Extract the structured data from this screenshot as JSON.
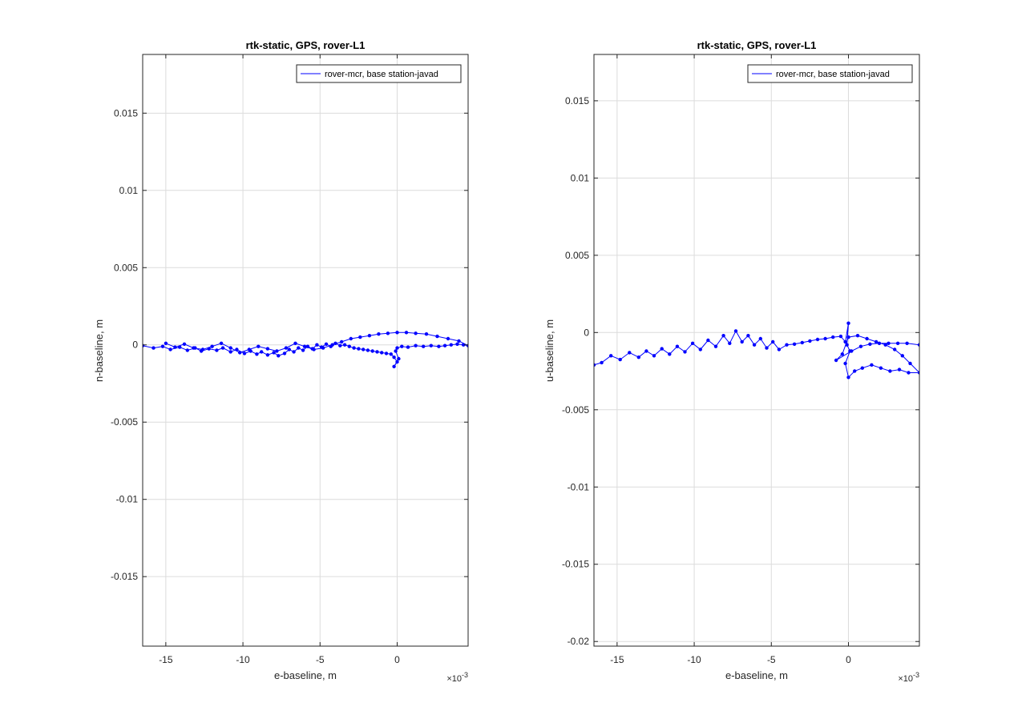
{
  "figure": {
    "background_color": "#ffffff",
    "axes_color": "#262626",
    "grid_color": "#dcdcdc",
    "line_color": "#0000ff"
  },
  "chart_data": [
    {
      "type": "line",
      "title": "rtk-static, GPS, rover-L1",
      "xlabel": "e-baseline, m",
      "ylabel": "n-baseline, m",
      "xlim": [
        -0.0165,
        0.0046
      ],
      "ylim": [
        -0.0195,
        0.0188
      ],
      "x_exponent_label": "×10^-3",
      "x_exponent_base": "×10",
      "x_exponent_power": "-3",
      "xticks": [
        -0.015,
        -0.01,
        -0.005,
        0
      ],
      "xticklabels": [
        "-15",
        "-10",
        "-5",
        "0"
      ],
      "yticks": [
        0.015,
        0.01,
        0.005,
        0,
        -0.005,
        -0.01,
        -0.015
      ],
      "yticklabels": [
        "0.015",
        "0.01",
        "0.005",
        "0",
        "-0.005",
        "-0.01",
        "-0.015"
      ],
      "grid": true,
      "legend": {
        "location": "top-right",
        "entries": [
          "rover-mcr, base station-javad"
        ]
      },
      "series": [
        {
          "name": "rover-mcr, base station-javad",
          "color": "#0000ff",
          "marker": "dot",
          "x": [
            -0.0165,
            -0.0158,
            -0.0152,
            -0.0147,
            -0.0141,
            -0.0136,
            -0.0131,
            -0.0127,
            -0.0122,
            -0.0117,
            -0.0113,
            -0.0108,
            -0.0104,
            -0.0099,
            -0.0095,
            -0.0091,
            -0.0088,
            -0.0084,
            -0.008,
            -0.0077,
            -0.0073,
            -0.007,
            -0.0067,
            -0.0064,
            -0.0061,
            -0.0058,
            -0.0055,
            -0.0052,
            -0.0049,
            -0.0046,
            -0.0043,
            -0.004,
            -0.0037,
            -0.0034,
            -0.0031,
            -0.0028,
            -0.0025,
            -0.0022,
            -0.0019,
            -0.0016,
            -0.0013,
            -0.001,
            -0.0007,
            -0.0004,
            -0.0002,
            0.0,
            -0.0002,
            0.0001,
            -0.0001,
            0.0,
            0.0003,
            0.0007,
            0.0012,
            0.0017,
            0.0022,
            0.0027,
            0.0031,
            0.0035,
            0.0039,
            0.0043,
            0.0046,
            0.004,
            0.0033,
            0.0026,
            0.0019,
            0.0012,
            0.0006,
            0.0,
            -0.0006,
            -0.0012,
            -0.0018,
            -0.0024,
            -0.003,
            -0.0036,
            -0.0042,
            -0.0048,
            -0.0054,
            -0.006,
            -0.0066,
            -0.0072,
            -0.0078,
            -0.0084,
            -0.009,
            -0.0096,
            -0.0102,
            -0.0108,
            -0.0114,
            -0.012,
            -0.0126,
            -0.0132,
            -0.0138,
            -0.0144,
            -0.015
          ],
          "y": [
            -5e-05,
            -0.0002,
            -0.0001,
            -0.0003,
            -0.00015,
            -0.00035,
            -0.0002,
            -0.0004,
            -0.00025,
            -0.00035,
            -0.0002,
            -0.00045,
            -0.0003,
            -0.00055,
            -0.0004,
            -0.0006,
            -0.00045,
            -0.00065,
            -0.0005,
            -0.0007,
            -0.00055,
            -0.0003,
            -0.00045,
            -0.0002,
            -0.00035,
            -0.0001,
            -0.00025,
            0.0,
            -0.00015,
            5e-05,
            -0.0001,
            0.0001,
            -5e-05,
            0.0,
            -0.0001,
            -0.0002,
            -0.00025,
            -0.0003,
            -0.00035,
            -0.0004,
            -0.00045,
            -0.0005,
            -0.00055,
            -0.0006,
            -0.0008,
            -0.0011,
            -0.0014,
            -0.0009,
            -0.0004,
            -0.0002,
            -0.0001,
            -0.00015,
            -5e-05,
            -0.0001,
            -5e-05,
            -0.0001,
            -5e-05,
            0.0,
            5e-05,
            0.0,
            -5e-05,
            0.00025,
            0.0004,
            0.00055,
            0.0007,
            0.00075,
            0.0008,
            0.0008,
            0.00075,
            0.0007,
            0.0006,
            0.0005,
            0.0004,
            0.0002,
            0.0,
            -0.0002,
            -0.0003,
            -0.0001,
            0.0001,
            -0.0002,
            -0.0004,
            -0.00025,
            -0.0001,
            -0.0003,
            -0.0005,
            -0.0002,
            0.0001,
            -0.0001,
            -0.0003,
            -0.0002,
            5e-05,
            -0.00015,
            0.0001
          ]
        }
      ]
    },
    {
      "type": "line",
      "title": "rtk-static, GPS, rover-L1",
      "xlabel": "e-baseline, m",
      "ylabel": "u-baseline, m",
      "xlim": [
        -0.0165,
        0.0046
      ],
      "ylim": [
        -0.0203,
        0.018
      ],
      "x_exponent_label": "×10^-3",
      "x_exponent_base": "×10",
      "x_exponent_power": "-3",
      "xticks": [
        -0.015,
        -0.01,
        -0.005,
        0
      ],
      "xticklabels": [
        "-15",
        "-10",
        "-5",
        "0"
      ],
      "yticks": [
        0.015,
        0.01,
        0.005,
        0,
        -0.005,
        -0.01,
        -0.015,
        -0.02
      ],
      "yticklabels": [
        "0.015",
        "0.01",
        "0.005",
        "0",
        "-0.005",
        "-0.01",
        "-0.015",
        "-0.02"
      ],
      "grid": true,
      "legend": {
        "location": "top-right",
        "entries": [
          "rover-mcr, base station-javad"
        ]
      },
      "series": [
        {
          "name": "rover-mcr, base station-javad",
          "color": "#0000ff",
          "marker": "dot",
          "x": [
            -0.0165,
            -0.016,
            -0.0154,
            -0.0148,
            -0.0142,
            -0.0136,
            -0.0131,
            -0.0126,
            -0.0121,
            -0.0116,
            -0.0111,
            -0.0106,
            -0.0101,
            -0.0096,
            -0.0091,
            -0.0086,
            -0.0081,
            -0.0077,
            -0.0073,
            -0.0069,
            -0.0065,
            -0.0061,
            -0.0057,
            -0.0053,
            -0.0049,
            -0.0045,
            -0.004,
            -0.0035,
            -0.003,
            -0.0025,
            -0.002,
            -0.0015,
            -0.001,
            -0.0005,
            -0.0002,
            0.0,
            -0.0001,
            0.0001,
            -0.0002,
            0.0,
            0.0004,
            0.0009,
            0.0015,
            0.0021,
            0.0027,
            0.0033,
            0.0039,
            0.0046,
            0.004,
            0.0035,
            0.003,
            0.0024,
            0.0018,
            0.0012,
            0.0006,
            0.0,
            -0.0004,
            -0.0008,
            0.0002,
            0.0008,
            0.0014,
            0.002,
            0.0026,
            0.0032,
            0.0038,
            0.0046
          ],
          "y": [
            -0.0021,
            -0.00195,
            -0.0015,
            -0.00175,
            -0.0013,
            -0.0016,
            -0.0012,
            -0.0015,
            -0.00105,
            -0.0014,
            -0.0009,
            -0.00125,
            -0.0007,
            -0.0011,
            -0.0005,
            -0.0009,
            -0.0002,
            -0.0007,
            0.0001,
            -0.0006,
            -0.0002,
            -0.0008,
            -0.0004,
            -0.001,
            -0.0006,
            -0.0011,
            -0.0008,
            -0.00075,
            -0.00065,
            -0.00055,
            -0.00045,
            -0.0004,
            -0.0003,
            -0.00025,
            -0.0006,
            0.0006,
            -0.0008,
            -0.0012,
            -0.002,
            -0.0029,
            -0.0025,
            -0.0023,
            -0.0021,
            -0.0023,
            -0.0025,
            -0.0024,
            -0.0026,
            -0.0026,
            -0.002,
            -0.0015,
            -0.0011,
            -0.0008,
            -0.0006,
            -0.0004,
            -0.0002,
            -0.0003,
            -0.0014,
            -0.0018,
            -0.0012,
            -0.0009,
            -0.00075,
            -0.0007,
            -0.0007,
            -0.0007,
            -0.0007,
            -0.0008
          ]
        }
      ]
    }
  ]
}
